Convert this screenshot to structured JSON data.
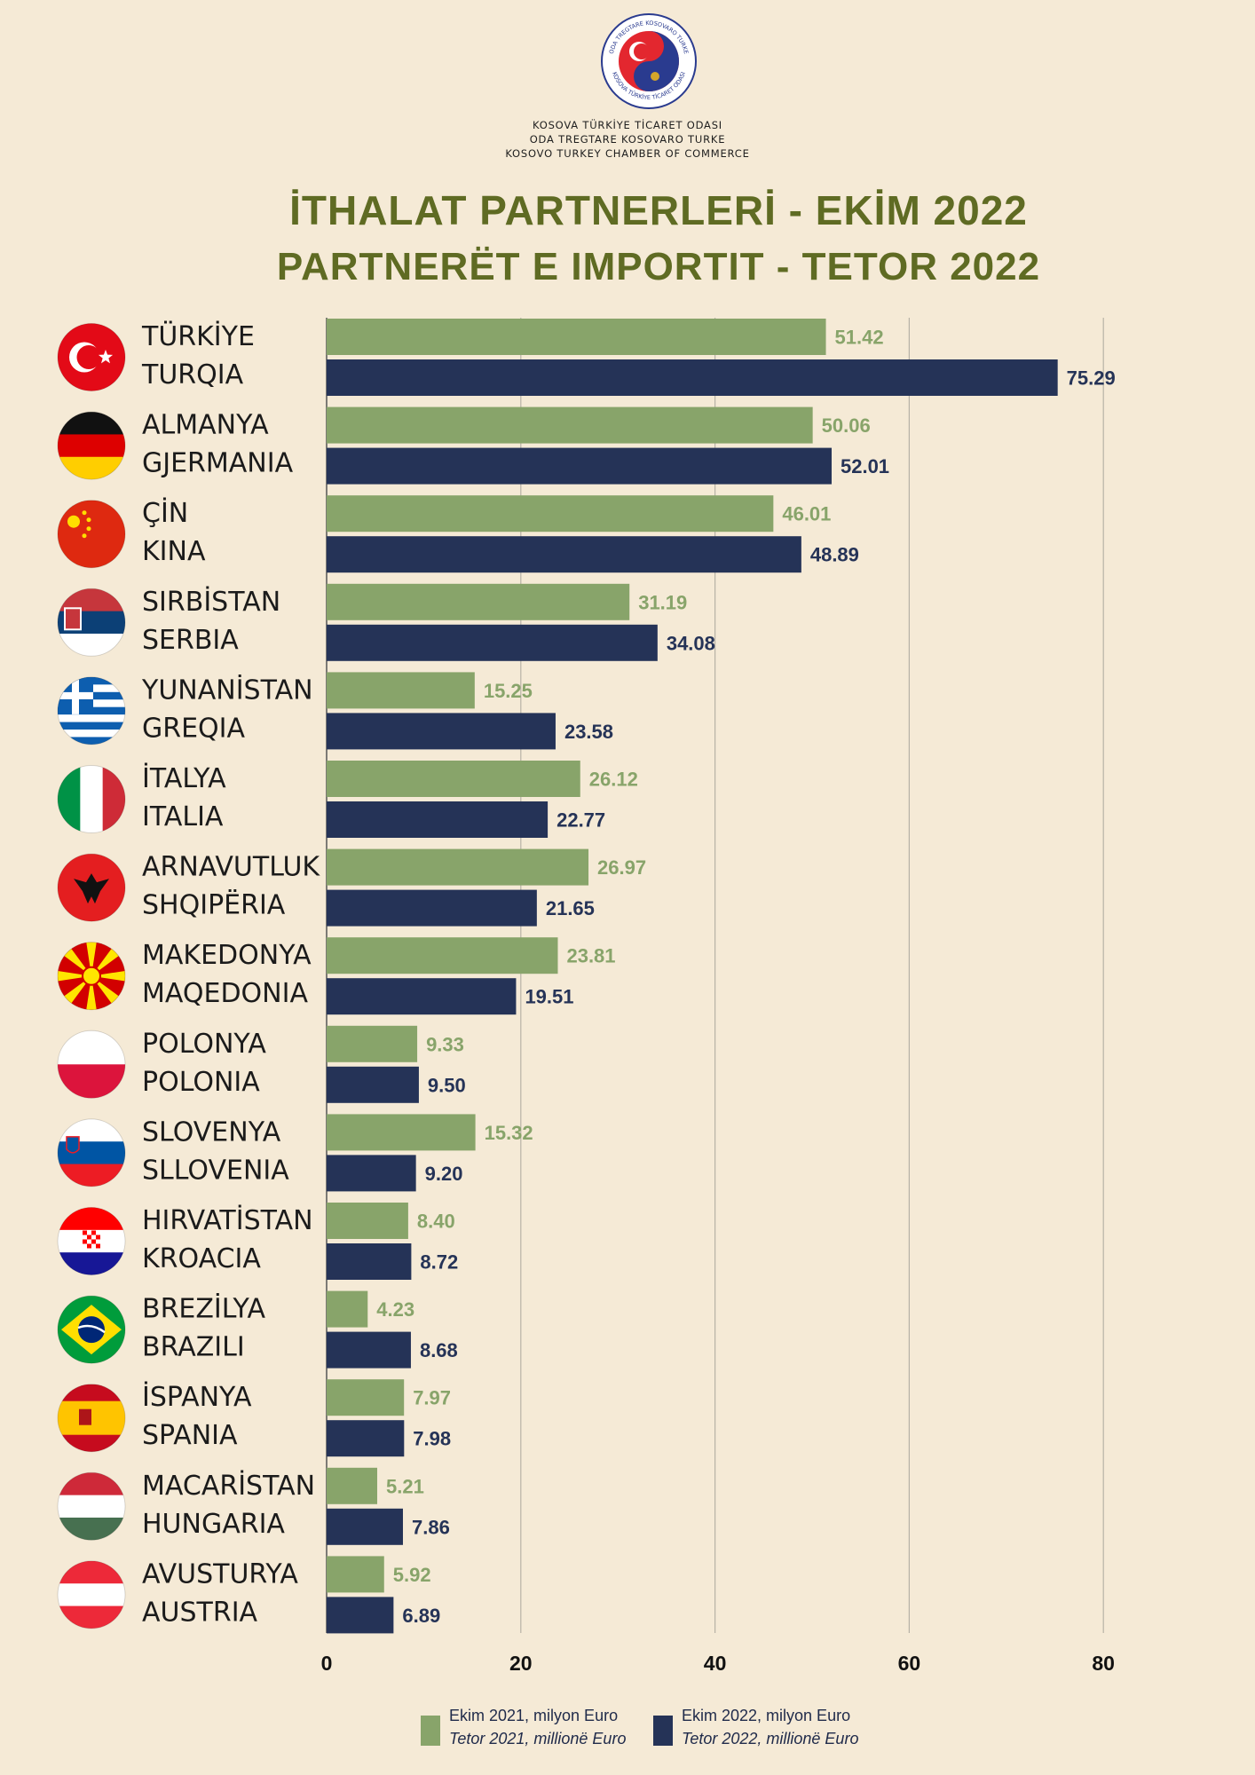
{
  "header": {
    "org_lines": [
      "KOSOVA TÜRKİYE TİCARET ODASI",
      "ODA TREGTARE KOSOVARO TURKE",
      "KOSOVO TURKEY CHAMBER OF COMMERCE"
    ],
    "logo_ring_top": "ODA TREGTARE KOSOVARO TURKE",
    "logo_ring_bottom": "KOSOVA TÜRKİYE TİCARET ODASI"
  },
  "title_tr": "İTHALAT PARTNERLERİ - EKİM 2022",
  "title_sq": "PARTNERËT E IMPORTIT - TETOR 2022",
  "colors": {
    "background": "#f5ead6",
    "series_2021": "#88a46a",
    "series_2022": "#253357",
    "title": "#5f6b23"
  },
  "legend": [
    {
      "line1": "Ekim 2021, milyon Euro",
      "line2": "Tetor 2021, millionë Euro",
      "color": "#88a46a"
    },
    {
      "line1": "Ekim 2022, milyon Euro",
      "line2": "Tetor 2022, millionë Euro",
      "color": "#253357"
    }
  ],
  "chart_data": {
    "type": "bar",
    "orientation": "horizontal",
    "categories": [
      {
        "tr": "TÜRKİYE",
        "sq": "TURQIA",
        "flag": "turkey-flag"
      },
      {
        "tr": "ALMANYA",
        "sq": "GJERMANIA",
        "flag": "germany-flag"
      },
      {
        "tr": "ÇİN",
        "sq": "KINA",
        "flag": "china-flag"
      },
      {
        "tr": "SIRBİSTAN",
        "sq": "SERBIA",
        "flag": "serbia-flag"
      },
      {
        "tr": "YUNANİSTAN",
        "sq": "GREQIA",
        "flag": "greece-flag"
      },
      {
        "tr": "İTALYA",
        "sq": "ITALIA",
        "flag": "italy-flag"
      },
      {
        "tr": "ARNAVUTLUK",
        "sq": "SHQIPËRIA",
        "flag": "albania-flag"
      },
      {
        "tr": "MAKEDONYA",
        "sq": "MAQEDONIA",
        "flag": "macedonia-flag"
      },
      {
        "tr": "POLONYA",
        "sq": "POLONIA",
        "flag": "poland-flag"
      },
      {
        "tr": "SLOVENYA",
        "sq": "SLLOVENIA",
        "flag": "slovenia-flag"
      },
      {
        "tr": "HIRVATİSTAN",
        "sq": "KROACIA",
        "flag": "croatia-flag"
      },
      {
        "tr": "BREZİLYA",
        "sq": "BRAZILI",
        "flag": "brazil-flag"
      },
      {
        "tr": "İSPANYA",
        "sq": "SPANIA",
        "flag": "spain-flag"
      },
      {
        "tr": "MACARİSTAN",
        "sq": "HUNGARIA",
        "flag": "hungary-flag"
      },
      {
        "tr": "AVUSTURYA",
        "sq": "AUSTRIA",
        "flag": "austria-flag"
      }
    ],
    "series": [
      {
        "name": "Ekim 2021, milyon Euro",
        "color": "#88a46a",
        "values": [
          51.42,
          50.06,
          46.01,
          31.19,
          15.25,
          26.12,
          26.97,
          23.81,
          9.33,
          15.32,
          8.4,
          4.23,
          7.97,
          5.21,
          5.92
        ],
        "labels": [
          "51.42",
          "50.06",
          "46.01",
          "31.19",
          "15.25",
          "26.12",
          "26.97",
          "23.81",
          "9.33",
          "15.32",
          "8.40",
          "4.23",
          "7.97",
          "5.21",
          "5.92"
        ]
      },
      {
        "name": "Ekim 2022, milyon Euro",
        "color": "#253357",
        "values": [
          75.29,
          52.01,
          48.89,
          34.08,
          23.58,
          22.77,
          21.65,
          19.51,
          9.5,
          9.2,
          8.72,
          8.68,
          7.98,
          7.86,
          6.89
        ],
        "labels": [
          "75.29",
          "52.01",
          "48.89",
          "34.08",
          "23.58",
          "22.77",
          "21.65",
          "19.51",
          "9.50",
          "9.20",
          "8.72",
          "8.68",
          "7.98",
          "7.86",
          "6.89"
        ]
      }
    ],
    "xlim": [
      0,
      80
    ],
    "xticks": [
      "0",
      "20",
      "40",
      "60",
      "80"
    ],
    "grid": true,
    "legend_position": "bottom"
  }
}
